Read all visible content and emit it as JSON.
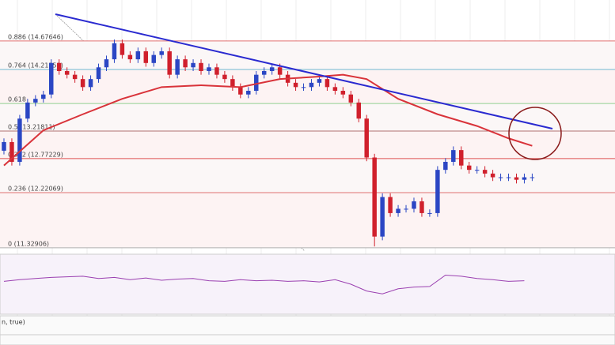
{
  "chart_data": {
    "type": "candlestick",
    "x": [
      0,
      1,
      2,
      3,
      4,
      5,
      6,
      7,
      8,
      9,
      10,
      11,
      12,
      13,
      14,
      15,
      16,
      17,
      18,
      19,
      20,
      21,
      22,
      23,
      24,
      25,
      26,
      27,
      28,
      29,
      30,
      31,
      32,
      33,
      34,
      35,
      36,
      37,
      38,
      39,
      40,
      41,
      42,
      43,
      44,
      45,
      46,
      47,
      48,
      49,
      50,
      51,
      52,
      53,
      54,
      55,
      56,
      57,
      58,
      59,
      60,
      61,
      62,
      63,
      64,
      65,
      66,
      67
    ],
    "open": [
      12.9,
      13.04,
      12.72,
      13.42,
      13.68,
      13.74,
      13.81,
      14.32,
      14.19,
      14.13,
      14.06,
      13.93,
      14.06,
      14.25,
      14.38,
      14.64,
      14.45,
      14.38,
      14.51,
      14.32,
      14.45,
      14.51,
      14.13,
      14.38,
      14.25,
      14.32,
      14.19,
      14.25,
      14.13,
      14.06,
      13.93,
      13.81,
      13.87,
      14.13,
      14.19,
      14.25,
      14.13,
      14.0,
      13.93,
      13.93,
      14.0,
      14.06,
      13.93,
      13.87,
      13.81,
      13.68,
      13.42,
      12.79,
      11.51,
      12.15,
      11.89,
      11.96,
      11.96,
      12.08,
      11.89,
      11.89,
      12.59,
      12.72,
      12.91,
      12.66,
      12.59,
      12.59,
      12.53,
      12.47,
      12.47,
      12.47,
      12.43,
      12.47
    ],
    "high": [
      13.1,
      13.1,
      13.48,
      13.74,
      13.8,
      13.87,
      14.38,
      14.38,
      14.25,
      14.19,
      14.12,
      14.12,
      14.31,
      14.44,
      14.7,
      14.7,
      14.51,
      14.57,
      14.57,
      14.51,
      14.57,
      14.57,
      14.44,
      14.44,
      14.38,
      14.38,
      14.31,
      14.31,
      14.19,
      14.12,
      13.99,
      13.93,
      14.19,
      14.25,
      14.31,
      14.31,
      14.19,
      14.06,
      13.99,
      14.06,
      14.12,
      14.12,
      13.99,
      13.93,
      13.87,
      13.74,
      13.48,
      12.85,
      12.21,
      12.21,
      12.02,
      12.02,
      12.14,
      12.14,
      11.95,
      12.65,
      12.78,
      12.97,
      12.97,
      12.72,
      12.65,
      12.65,
      12.59,
      12.53,
      12.53,
      12.53,
      12.53,
      12.53
    ],
    "low": [
      12.84,
      12.66,
      12.66,
      13.36,
      13.62,
      13.68,
      13.75,
      14.13,
      14.07,
      14.0,
      13.87,
      13.87,
      14.0,
      14.19,
      14.32,
      14.39,
      14.32,
      14.32,
      14.26,
      14.26,
      14.39,
      14.07,
      14.07,
      14.19,
      14.19,
      14.13,
      14.13,
      14.07,
      14.0,
      13.87,
      13.75,
      13.75,
      13.81,
      14.07,
      14.13,
      14.07,
      13.94,
      13.87,
      13.87,
      13.87,
      13.94,
      13.87,
      13.81,
      13.75,
      13.62,
      13.36,
      12.73,
      11.35,
      11.45,
      11.83,
      11.83,
      11.9,
      11.9,
      11.83,
      11.83,
      11.83,
      12.53,
      12.66,
      12.6,
      12.53,
      12.53,
      12.47,
      12.41,
      12.41,
      12.41,
      12.37,
      12.37,
      12.41
    ],
    "close": [
      13.04,
      12.72,
      13.42,
      13.68,
      13.74,
      13.81,
      14.32,
      14.19,
      14.13,
      14.06,
      13.93,
      14.06,
      14.25,
      14.38,
      14.64,
      14.45,
      14.38,
      14.51,
      14.32,
      14.45,
      14.51,
      14.13,
      14.38,
      14.25,
      14.32,
      14.19,
      14.25,
      14.13,
      14.06,
      13.93,
      13.81,
      13.87,
      14.13,
      14.19,
      14.25,
      14.13,
      14.0,
      13.93,
      13.93,
      14.0,
      14.06,
      13.93,
      13.87,
      13.81,
      13.68,
      13.42,
      12.79,
      11.51,
      12.15,
      11.89,
      11.96,
      11.96,
      12.08,
      11.89,
      11.89,
      12.59,
      12.72,
      12.91,
      12.66,
      12.59,
      12.59,
      12.53,
      12.47,
      12.47,
      12.47,
      12.43,
      12.47,
      12.47
    ],
    "up_color": "#2b46c4",
    "down_color": "#d0202c",
    "xlim": [
      -0.5,
      77.5
    ],
    "ylim": [
      11.25,
      15.34
    ],
    "moving_average": {
      "color": "#d9333a",
      "x": [
        0,
        5,
        10,
        15,
        20,
        25,
        30,
        35,
        40,
        43,
        46,
        50,
        55,
        60,
        64,
        67
      ],
      "values": [
        12.66,
        13.23,
        13.49,
        13.74,
        13.93,
        13.96,
        13.93,
        14.06,
        14.1,
        14.13,
        14.06,
        13.74,
        13.49,
        13.3,
        13.1,
        12.98
      ]
    },
    "levels": [
      {
        "value": 14.67646,
        "label": "0.886 (14.67646)",
        "color": "#e07070"
      },
      {
        "value": 14.21553,
        "label": "0.764 (14.21553)",
        "color": "#70b8d0"
      },
      {
        "value": 13.66366,
        "label": "0.618",
        "color": "#8fcf8f"
      },
      {
        "value": 13.21811,
        "label": "0.5 (13.21811)",
        "color": "#b07070"
      },
      {
        "value": 12.77229,
        "label": "0.382 (12.77229)",
        "color": "#e05050"
      },
      {
        "value": 12.22069,
        "label": "0.236 (12.22069)",
        "color": "#e07070"
      },
      {
        "value": 11.32906,
        "label": "0 (11.32906)",
        "color": "#b0b0b0"
      }
    ],
    "rsi": {
      "color": "#9a3fb0",
      "ylim": [
        0,
        100
      ],
      "x": [
        0,
        2,
        4,
        6,
        8,
        10,
        12,
        14,
        16,
        18,
        20,
        22,
        24,
        26,
        28,
        30,
        32,
        34,
        36,
        38,
        40,
        42,
        44,
        46,
        48,
        50,
        52,
        54,
        56,
        58,
        60,
        62,
        64,
        66
      ],
      "values": [
        55,
        58,
        60,
        62,
        63,
        64,
        60,
        62,
        58,
        61,
        57,
        59,
        60,
        56,
        55,
        58,
        56,
        57,
        55,
        56,
        54,
        58,
        50,
        38,
        33,
        42,
        45,
        46,
        66,
        64,
        60,
        58,
        55,
        56
      ]
    },
    "indicator_label": "n, true)"
  }
}
